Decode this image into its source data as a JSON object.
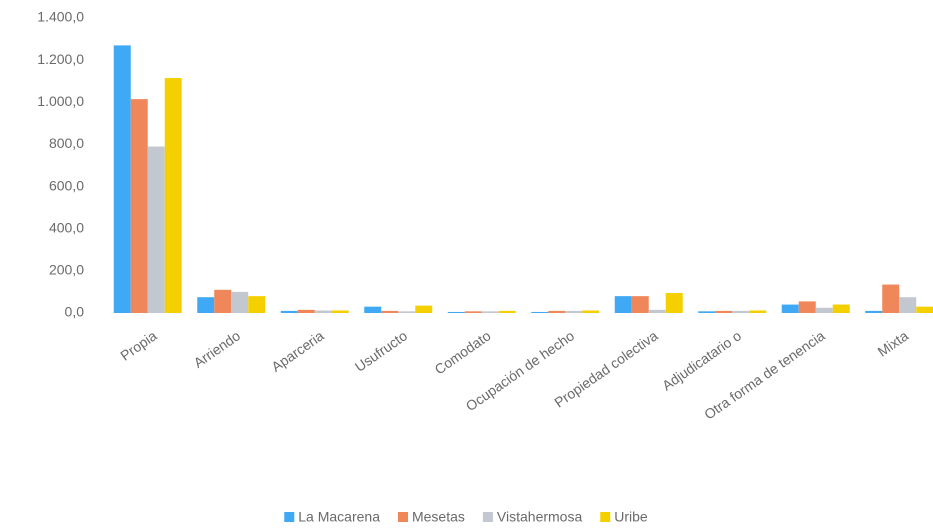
{
  "chart_data": {
    "type": "bar",
    "categories": [
      "Propia",
      "Arriendo",
      "Aparceria",
      "Usufructo",
      "Comodato",
      "Ocupación de hecho",
      "Propiedad colectiva",
      "Adjudicatario o",
      "Otra forma de tenencia",
      "Mixta"
    ],
    "series": [
      {
        "name": "La Macarena",
        "color": "#3fa9f5",
        "values": [
          1270,
          75,
          10,
          30,
          5,
          5,
          80,
          8,
          40,
          10
        ]
      },
      {
        "name": "Mesetas",
        "color": "#f0875a",
        "values": [
          1015,
          110,
          15,
          10,
          8,
          10,
          80,
          10,
          55,
          135
        ]
      },
      {
        "name": "Vistahermosa",
        "color": "#c3c8d0",
        "values": [
          790,
          100,
          12,
          8,
          8,
          10,
          15,
          10,
          25,
          75
        ]
      },
      {
        "name": "Uribe",
        "color": "#f5d000",
        "values": [
          1115,
          80,
          12,
          35,
          10,
          12,
          95,
          12,
          40,
          30
        ]
      }
    ],
    "ylim": [
      0,
      1400
    ],
    "yticks": [
      {
        "value": 0,
        "label": "0,0"
      },
      {
        "value": 200,
        "label": "200,0"
      },
      {
        "value": 400,
        "label": "400,0"
      },
      {
        "value": 600,
        "label": "600,0"
      },
      {
        "value": 800,
        "label": "800,0"
      },
      {
        "value": 1000,
        "label": "1.000,0"
      },
      {
        "value": 1200,
        "label": "1.200,0"
      },
      {
        "value": 1400,
        "label": "1.400,0"
      }
    ],
    "legend": "bottom"
  }
}
